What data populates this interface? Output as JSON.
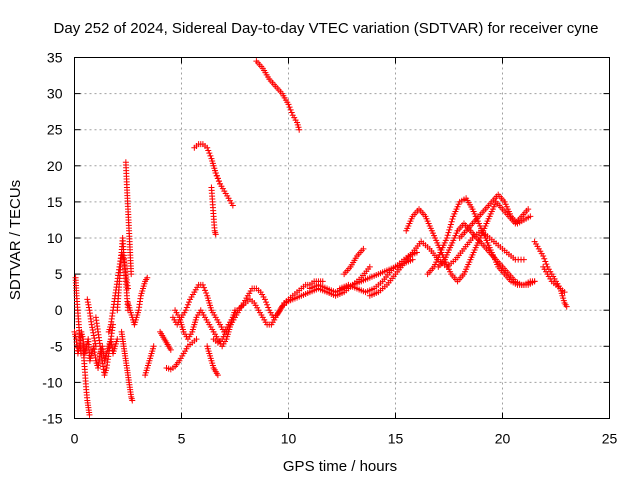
{
  "chart_data": {
    "type": "scatter",
    "title": "Day 252 of 2024, Sidereal Day-to-day VTEC variation (SDTVAR) for receiver cyne",
    "xlabel": "GPS time / hours",
    "ylabel": "SDTVAR / TECUs",
    "xlim": [
      0,
      25
    ],
    "ylim": [
      -15,
      35
    ],
    "xticks": [
      0,
      5,
      10,
      15,
      20,
      25
    ],
    "yticks": [
      -15,
      -10,
      -5,
      0,
      5,
      10,
      15,
      20,
      25,
      30,
      35
    ],
    "xtick_labels": [
      "0",
      "5",
      "10",
      "15",
      "20",
      "25"
    ],
    "ytick_labels": [
      "-15",
      "-10",
      "-5",
      "0",
      "5",
      "10",
      "15",
      "20",
      "25",
      "30",
      "35"
    ],
    "grid": true,
    "marker": "+",
    "marker_color": "#ff0000",
    "series": [
      {
        "name": "t0",
        "x": [
          0,
          0.08,
          0.16,
          0.24,
          0.32,
          0.4,
          0.48,
          0.56,
          0.64,
          0.72,
          0.8,
          0.9,
          1.0,
          1.1,
          1.2,
          1.3,
          1.4,
          1.5,
          1.6,
          1.7,
          1.8,
          1.9,
          2.0
        ],
        "y": [
          -3,
          -4,
          -6,
          -5,
          -3,
          -4,
          -6,
          -5,
          -4,
          -7,
          -6,
          -5,
          -7,
          -8,
          -6,
          -5,
          -7,
          -6,
          -5,
          -4,
          -6,
          -5,
          -4
        ]
      },
      {
        "name": "t1",
        "x": [
          0.05,
          0.1,
          0.15,
          0.2,
          0.25,
          0.3
        ],
        "y": [
          4.5,
          2.0,
          0.0,
          -2.0,
          -4.0,
          -6.0
        ]
      },
      {
        "name": "t2",
        "x": [
          0.4,
          0.45,
          0.5,
          0.55,
          0.6,
          0.65,
          0.7
        ],
        "y": [
          -5,
          -7,
          -9,
          -11,
          -12.5,
          -13.5,
          -14.5
        ]
      },
      {
        "name": "t3",
        "x": [
          0.6,
          0.7,
          0.8,
          0.9,
          1.0
        ],
        "y": [
          1.5,
          0.0,
          -2.0,
          -3.5,
          -5.0
        ]
      },
      {
        "name": "t4",
        "x": [
          1.0,
          1.1,
          1.2,
          1.3,
          1.4,
          1.5,
          1.6,
          1.7,
          1.8
        ],
        "y": [
          -1,
          -3,
          -5,
          -7,
          -9,
          -8,
          -6,
          -4,
          -2
        ]
      },
      {
        "name": "t5",
        "x": [
          1.6,
          1.7,
          1.8,
          1.9,
          2.0,
          2.1,
          2.2,
          2.3,
          2.4,
          2.5
        ],
        "y": [
          -3,
          -2,
          0,
          2,
          4,
          6,
          8,
          7,
          5,
          3
        ]
      },
      {
        "name": "t6",
        "x": [
          2.0,
          2.05,
          2.1,
          2.15,
          2.2,
          2.25,
          2.3,
          2.35,
          2.4,
          2.45,
          2.5
        ],
        "y": [
          0,
          2,
          4,
          6,
          8,
          10,
          8,
          6,
          4,
          2,
          0
        ]
      },
      {
        "name": "t7",
        "x": [
          2.4,
          2.45,
          2.5,
          2.55,
          2.6,
          2.65
        ],
        "y": [
          20.5,
          17,
          14,
          11,
          8,
          5
        ]
      },
      {
        "name": "t8",
        "x": [
          2.2,
          2.25,
          2.3,
          2.35,
          2.4,
          2.45,
          2.5,
          2.55,
          2.6,
          2.65,
          2.7
        ],
        "y": [
          -3,
          -4,
          -5,
          -6,
          -7,
          -8,
          -9,
          -10,
          -11,
          -12,
          -12.5
        ]
      },
      {
        "name": "t9",
        "x": [
          2.5,
          2.6,
          2.7,
          2.8,
          2.9,
          3.0,
          3.1,
          3.2,
          3.3,
          3.4
        ],
        "y": [
          1,
          0,
          -1,
          -2,
          -1,
          0,
          2,
          3,
          4,
          4.5
        ]
      },
      {
        "name": "t10",
        "x": [
          3.3,
          3.4,
          3.5,
          3.6,
          3.7
        ],
        "y": [
          -9,
          -8,
          -7,
          -6,
          -5
        ]
      },
      {
        "name": "t11",
        "x": [
          4.0,
          4.1,
          4.2,
          4.3,
          4.4,
          4.5
        ],
        "y": [
          -3,
          -3.5,
          -4,
          -4.5,
          -5,
          -5.5
        ]
      },
      {
        "name": "t12",
        "x": [
          4.3,
          4.5,
          4.7,
          4.9,
          5.1,
          5.3,
          5.5,
          5.7
        ],
        "y": [
          -8,
          -8.2,
          -7.8,
          -7,
          -6,
          -5,
          -4.5,
          -4
        ]
      },
      {
        "name": "t13",
        "x": [
          4.6,
          4.8,
          5.0,
          5.2,
          5.4,
          5.6,
          5.8,
          6.0,
          6.2,
          6.4,
          6.6,
          6.8,
          7.0
        ],
        "y": [
          -1,
          -2,
          -1,
          0,
          1.5,
          2.5,
          3.5,
          3.5,
          2,
          0,
          -1,
          -2,
          -3
        ]
      },
      {
        "name": "t14",
        "x": [
          4.7,
          4.9,
          5.1,
          5.3,
          5.5,
          5.7,
          5.9,
          6.1,
          6.3,
          6.5,
          6.7,
          6.9,
          7.1,
          7.3,
          7.5
        ],
        "y": [
          0,
          -1,
          -3,
          -4,
          -3,
          -1,
          0,
          -1,
          -2,
          -3,
          -4,
          -5,
          -4,
          -2,
          0
        ]
      },
      {
        "name": "t15",
        "x": [
          5.6,
          5.8,
          6.0,
          6.2,
          6.4,
          6.6,
          6.8
        ],
        "y": [
          22.5,
          23,
          23,
          22.5,
          21,
          19,
          17.5
        ]
      },
      {
        "name": "t16",
        "x": [
          6.4,
          6.45,
          6.5,
          6.55,
          6.6
        ],
        "y": [
          17,
          15,
          13,
          11,
          10.5
        ]
      },
      {
        "name": "t17",
        "x": [
          6.6,
          6.8,
          7.0,
          7.2,
          7.4
        ],
        "y": [
          19,
          17.5,
          16.5,
          15.5,
          14.5
        ]
      },
      {
        "name": "t18",
        "x": [
          6.2,
          6.3,
          6.4,
          6.5,
          6.6,
          6.7
        ],
        "y": [
          -5,
          -6,
          -7,
          -8,
          -8.5,
          -9
        ]
      },
      {
        "name": "t19",
        "x": [
          6.5,
          6.7,
          6.9,
          7.1,
          7.3,
          7.5,
          7.7,
          7.9,
          8.1,
          8.3,
          8.5,
          8.7,
          8.9,
          9.1,
          9.3,
          9.5,
          9.7,
          9.9,
          10.1
        ],
        "y": [
          -4,
          -4.5,
          -4,
          -3,
          -2,
          -1,
          0,
          1,
          2,
          3,
          3,
          2.5,
          1.5,
          0,
          -1,
          -0.5,
          0.5,
          1,
          1.5
        ]
      },
      {
        "name": "t20",
        "x": [
          7.0,
          7.2,
          7.4,
          7.6,
          7.8,
          8.0,
          8.2,
          8.4,
          8.6,
          8.8,
          9.0,
          9.2,
          9.4,
          9.6,
          9.8,
          10.0,
          10.2,
          10.4,
          10.6,
          10.8,
          11.0,
          11.2,
          11.4,
          11.6
        ],
        "y": [
          -3,
          -2,
          -1,
          0,
          0.5,
          1,
          1.5,
          1,
          0,
          -1,
          -2,
          -2,
          -1,
          0,
          1,
          1.5,
          2,
          2.5,
          3,
          3.5,
          3.5,
          4,
          4,
          4
        ]
      },
      {
        "name": "t21",
        "x": [
          8.5,
          8.8,
          9.1,
          9.4,
          9.7,
          10.0,
          10.2,
          10.4,
          10.5
        ],
        "y": [
          34.5,
          33.5,
          32,
          31,
          30,
          28.5,
          27,
          26,
          25
        ]
      },
      {
        "name": "t22",
        "x": [
          9.8,
          10.2,
          10.6,
          11.0,
          11.4,
          11.8,
          12.2,
          12.6,
          13.0,
          13.4,
          13.8
        ],
        "y": [
          1,
          1.5,
          2,
          2.5,
          3,
          2.5,
          2,
          2.5,
          3.5,
          4.5,
          6
        ]
      },
      {
        "name": "t23",
        "x": [
          11.0,
          11.4,
          11.8,
          12.2,
          12.6,
          13.0,
          13.4,
          13.8,
          14.2,
          14.6,
          15.0,
          15.4,
          15.8
        ],
        "y": [
          3,
          3.5,
          3,
          2.5,
          3,
          3.5,
          4,
          4.5,
          5,
          5.5,
          6,
          6.5,
          7
        ]
      },
      {
        "name": "t24",
        "x": [
          12.4,
          12.8,
          13.2,
          13.6,
          14.0,
          14.4,
          14.8,
          15.2,
          15.6,
          16.0
        ],
        "y": [
          3,
          3.5,
          3,
          2.5,
          3,
          4,
          5.5,
          6.5,
          7.5,
          8
        ]
      },
      {
        "name": "t25",
        "x": [
          12.6,
          12.9,
          13.2,
          13.5
        ],
        "y": [
          5,
          6,
          7.5,
          8.5
        ]
      },
      {
        "name": "t26",
        "x": [
          13.8,
          14.2,
          14.6,
          15.0,
          15.4,
          15.8,
          16.2,
          16.6,
          17.0,
          17.4,
          17.8,
          18.2,
          18.6,
          19.0,
          19.4,
          19.8,
          20.2,
          20.6,
          21.0
        ],
        "y": [
          2,
          2.5,
          3.5,
          5,
          6.5,
          8,
          9.5,
          8.5,
          7,
          6,
          7,
          8.5,
          10,
          11,
          10,
          9,
          8,
          7,
          7
        ]
      },
      {
        "name": "t27",
        "x": [
          15.5,
          15.8,
          16.1,
          16.4,
          16.7,
          17.0,
          17.3,
          17.6,
          17.9,
          18.2,
          18.5,
          18.8,
          19.1,
          19.4,
          19.7,
          20.0,
          20.3,
          20.6,
          20.9,
          21.2
        ],
        "y": [
          11,
          13,
          14,
          13,
          11,
          9,
          7,
          5,
          4,
          5,
          7,
          9,
          11,
          13,
          15,
          14,
          13,
          12,
          13,
          14
        ]
      },
      {
        "name": "t28",
        "x": [
          16.5,
          16.8,
          17.1,
          17.4,
          17.7,
          18.0,
          18.3,
          18.6,
          18.9,
          19.2,
          19.5,
          19.8,
          20.1,
          20.4,
          20.7,
          21.0,
          21.3,
          21.5
        ],
        "y": [
          5,
          6,
          8,
          10,
          13,
          15,
          15.5,
          14,
          12,
          10,
          8,
          6,
          5,
          4,
          3.5,
          3.5,
          4,
          4
        ]
      },
      {
        "name": "t29",
        "x": [
          17.0,
          17.3,
          17.6,
          17.9,
          18.2,
          18.5,
          18.8,
          19.1,
          19.4,
          19.7,
          20.0,
          20.3,
          20.6,
          20.9,
          21.2,
          21.5
        ],
        "y": [
          6,
          7,
          9,
          11,
          12,
          11,
          10,
          9,
          8,
          7,
          6,
          5,
          4,
          3.5,
          3.5,
          4
        ]
      },
      {
        "name": "t30",
        "x": [
          18.0,
          18.3,
          18.6,
          18.9,
          19.2,
          19.5,
          19.8,
          20.1,
          20.4,
          20.7,
          21.0,
          21.3
        ],
        "y": [
          10,
          11,
          12,
          13,
          14,
          15,
          16,
          15,
          13,
          12,
          12.5,
          13
        ]
      },
      {
        "name": "t31",
        "x": [
          21.5,
          21.7,
          21.9,
          22.1,
          22.3,
          22.5,
          22.7,
          22.9
        ],
        "y": [
          9.5,
          8.5,
          7.5,
          6,
          5,
          4,
          3,
          2.5
        ]
      },
      {
        "name": "t32",
        "x": [
          21.9,
          22.1,
          22.3,
          22.5,
          22.7,
          22.8,
          22.9,
          23.0
        ],
        "y": [
          6,
          5,
          4,
          3.5,
          3,
          2,
          1,
          0.5
        ]
      }
    ]
  }
}
